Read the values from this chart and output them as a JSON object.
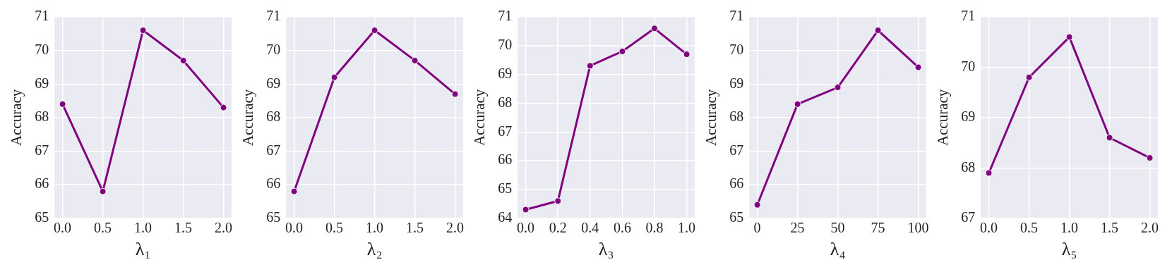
{
  "chart_data": [
    {
      "type": "line",
      "xlabel": "λ₁",
      "ylabel": "Accuracy",
      "x": [
        0,
        0.5,
        1,
        1.5,
        2
      ],
      "xlim": [
        -0.1,
        2.1
      ],
      "xticks": [
        {
          "value": 0,
          "label": "0.0"
        },
        {
          "value": 0.5,
          "label": "0.5"
        },
        {
          "value": 1,
          "label": "1.0"
        },
        {
          "value": 1.5,
          "label": "1.5"
        },
        {
          "value": 2,
          "label": "2.0"
        }
      ],
      "ylim": [
        65,
        71
      ],
      "yticks": [
        65,
        66,
        67,
        68,
        69,
        70,
        71
      ],
      "grid": true,
      "marker": "circle",
      "line_style": "solid",
      "series": [
        {
          "color": "#800080",
          "values": [
            68.4,
            65.8,
            70.6,
            69.7,
            68.3
          ]
        }
      ]
    },
    {
      "type": "line",
      "xlabel": "λ₂",
      "ylabel": "Accuracy",
      "x": [
        0,
        0.5,
        1,
        1.5,
        2
      ],
      "xlim": [
        -0.1,
        2.1
      ],
      "xticks": [
        {
          "value": 0,
          "label": "0.0"
        },
        {
          "value": 0.5,
          "label": "0.5"
        },
        {
          "value": 1,
          "label": "1.0"
        },
        {
          "value": 1.5,
          "label": "1.5"
        },
        {
          "value": 2,
          "label": "2.0"
        }
      ],
      "ylim": [
        65,
        71
      ],
      "yticks": [
        65,
        66,
        67,
        68,
        69,
        70,
        71
      ],
      "grid": true,
      "marker": "circle",
      "line_style": "solid",
      "series": [
        {
          "color": "#800080",
          "values": [
            65.8,
            69.2,
            70.6,
            69.7,
            68.7
          ]
        }
      ]
    },
    {
      "type": "line",
      "xlabel": "λ₃",
      "ylabel": "Accuracy",
      "x": [
        0,
        0.2,
        0.4,
        0.6,
        0.8,
        1
      ],
      "xlim": [
        -0.05,
        1.05
      ],
      "xticks": [
        {
          "value": 0,
          "label": "0.0"
        },
        {
          "value": 0.2,
          "label": "0.2"
        },
        {
          "value": 0.4,
          "label": "0.4"
        },
        {
          "value": 0.6,
          "label": "0.6"
        },
        {
          "value": 0.8,
          "label": "0.8"
        },
        {
          "value": 1,
          "label": "1.0"
        }
      ],
      "ylim": [
        64,
        71
      ],
      "yticks": [
        64,
        65,
        66,
        67,
        68,
        69,
        70,
        71
      ],
      "grid": true,
      "marker": "circle",
      "line_style": "solid",
      "series": [
        {
          "color": "#800080",
          "values": [
            64.3,
            64.6,
            69.3,
            69.8,
            70.6,
            69.7
          ]
        }
      ]
    },
    {
      "type": "line",
      "xlabel": "λ₄",
      "ylabel": "Accuracy",
      "x": [
        0,
        25,
        50,
        75,
        100
      ],
      "xlim": [
        -5,
        105
      ],
      "xticks": [
        0,
        25,
        50,
        75,
        100
      ],
      "ylim": [
        65,
        71
      ],
      "yticks": [
        65,
        66,
        67,
        68,
        69,
        70,
        71
      ],
      "grid": true,
      "marker": "circle",
      "line_style": "solid",
      "series": [
        {
          "color": "#800080",
          "values": [
            65.4,
            68.4,
            68.9,
            70.6,
            69.5
          ]
        }
      ]
    },
    {
      "type": "line",
      "xlabel": "λ₅",
      "ylabel": "Accuracy",
      "x": [
        0,
        0.5,
        1,
        1.5,
        2
      ],
      "xlim": [
        -0.1,
        2.1
      ],
      "xticks": [
        {
          "value": 0,
          "label": "0.0"
        },
        {
          "value": 0.5,
          "label": "0.5"
        },
        {
          "value": 1,
          "label": "1.0"
        },
        {
          "value": 1.5,
          "label": "1.5"
        },
        {
          "value": 2,
          "label": "2.0"
        }
      ],
      "ylim": [
        67,
        71
      ],
      "yticks": [
        67,
        68,
        69,
        70,
        71
      ],
      "grid": true,
      "marker": "circle",
      "line_style": "solid",
      "series": [
        {
          "color": "#800080",
          "values": [
            67.9,
            69.8,
            70.6,
            68.6,
            68.2
          ]
        }
      ]
    }
  ]
}
